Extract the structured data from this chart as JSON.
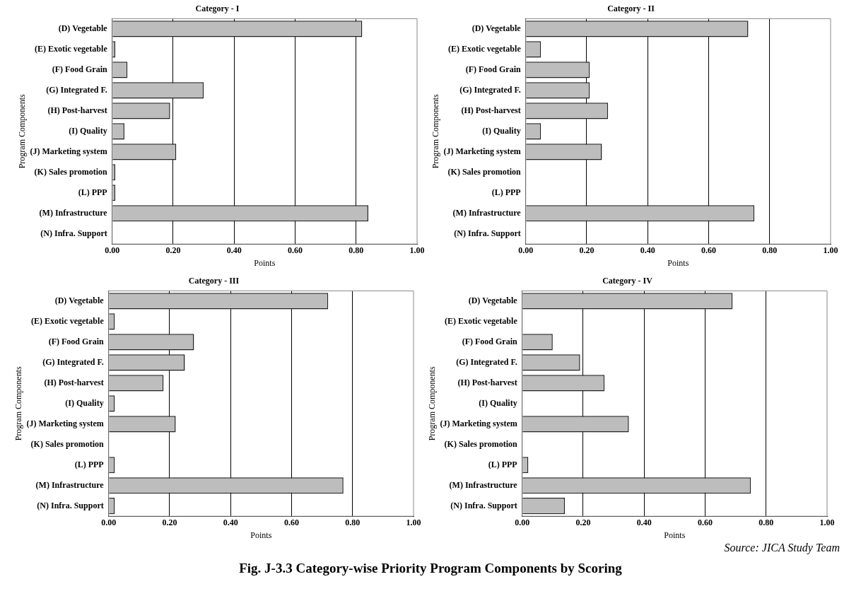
{
  "chart_data": [
    {
      "type": "bar",
      "orientation": "horizontal",
      "title": "Category - I",
      "xlabel": "Points",
      "ylabel": "Program Components",
      "categories": [
        "(D) Vegetable",
        "(E) Exotic vegetable",
        "(F) Food Grain",
        "(G) Integrated F.",
        "(H) Post-harvest",
        "(I) Quality",
        "(J) Marketing system",
        "(K) Sales promotion",
        "(L) PPP",
        "(M) Infrastructure",
        "(N) Infra. Support"
      ],
      "values": [
        0.82,
        0.01,
        0.05,
        0.3,
        0.19,
        0.04,
        0.21,
        0.01,
        0.01,
        0.84,
        0
      ],
      "color": "#bdbdbd",
      "xlim": [
        0,
        1
      ],
      "xticks": [
        {
          "value": 0,
          "label": "0.00"
        },
        {
          "value": 0.2,
          "label": "0.20"
        },
        {
          "value": 0.4,
          "label": "0.40"
        },
        {
          "value": 0.6,
          "label": "0.60"
        },
        {
          "value": 0.8,
          "label": "0.80"
        },
        {
          "value": 1,
          "label": "1.00"
        }
      ],
      "grid": "x"
    },
    {
      "type": "bar",
      "orientation": "horizontal",
      "title": "Category - II",
      "xlabel": "Points",
      "ylabel": "Program Components",
      "categories": [
        "(D) Vegetable",
        "(E) Exotic vegetable",
        "(F) Food Grain",
        "(G) Integrated F.",
        "(H) Post-harvest",
        "(I) Quality",
        "(J) Marketing system",
        "(K) Sales promotion",
        "(L) PPP",
        "(M) Infrastructure",
        "(N) Infra. Support"
      ],
      "values": [
        0.73,
        0.05,
        0.21,
        0.21,
        0.27,
        0.05,
        0.25,
        0,
        0,
        0.75,
        0
      ],
      "color": "#bdbdbd",
      "xlim": [
        0,
        1
      ],
      "xticks": [
        {
          "value": 0,
          "label": "0.00"
        },
        {
          "value": 0.2,
          "label": "0.20"
        },
        {
          "value": 0.4,
          "label": "0.40"
        },
        {
          "value": 0.6,
          "label": "0.60"
        },
        {
          "value": 0.8,
          "label": "0.80"
        },
        {
          "value": 1,
          "label": "1.00"
        }
      ],
      "grid": "x"
    },
    {
      "type": "bar",
      "orientation": "horizontal",
      "title": "Category - III",
      "xlabel": "Points",
      "ylabel": "Program Components",
      "categories": [
        "(D) Vegetable",
        "(E) Exotic vegetable",
        "(F) Food Grain",
        "(G) Integrated F.",
        "(H) Post-harvest",
        "(I) Quality",
        "(J) Marketing system",
        "(K) Sales promotion",
        "(L) PPP",
        "(M) Infrastructure",
        "(N) Infra. Support"
      ],
      "values": [
        0.72,
        0.02,
        0.28,
        0.25,
        0.18,
        0.02,
        0.22,
        0,
        0.02,
        0.77,
        0.02
      ],
      "color": "#bdbdbd",
      "xlim": [
        0,
        1
      ],
      "xticks": [
        {
          "value": 0,
          "label": "0.00"
        },
        {
          "value": 0.2,
          "label": "0.20"
        },
        {
          "value": 0.4,
          "label": "0.40"
        },
        {
          "value": 0.6,
          "label": "0.60"
        },
        {
          "value": 0.8,
          "label": "0.80"
        },
        {
          "value": 1,
          "label": "1.00"
        }
      ],
      "grid": "x"
    },
    {
      "type": "bar",
      "orientation": "horizontal",
      "title": "Category - IV",
      "xlabel": "Points",
      "ylabel": "Program Components",
      "categories": [
        "(D) Vegetable",
        "(E) Exotic vegetable",
        "(F) Food Grain",
        "(G) Integrated F.",
        "(H) Post-harvest",
        "(I) Quality",
        "(J) Marketing system",
        "(K) Sales promotion",
        "(L) PPP",
        "(M) Infrastructure",
        "(N) Infra. Support"
      ],
      "values": [
        0.69,
        0,
        0.1,
        0.19,
        0.27,
        0,
        0.35,
        0,
        0.02,
        0.75,
        0.14
      ],
      "color": "#bdbdbd",
      "xlim": [
        0,
        1
      ],
      "xticks": [
        {
          "value": 0,
          "label": "0.00"
        },
        {
          "value": 0.2,
          "label": "0.20"
        },
        {
          "value": 0.4,
          "label": "0.40"
        },
        {
          "value": 0.6,
          "label": "0.60"
        },
        {
          "value": 0.8,
          "label": "0.80"
        },
        {
          "value": 1,
          "label": "1.00"
        }
      ],
      "grid": "x",
      "annotations": [
        "Source: JICA Study Team",
        "Fig. J-3.3   Category-wise Priority Program Components by Scoring"
      ]
    }
  ]
}
